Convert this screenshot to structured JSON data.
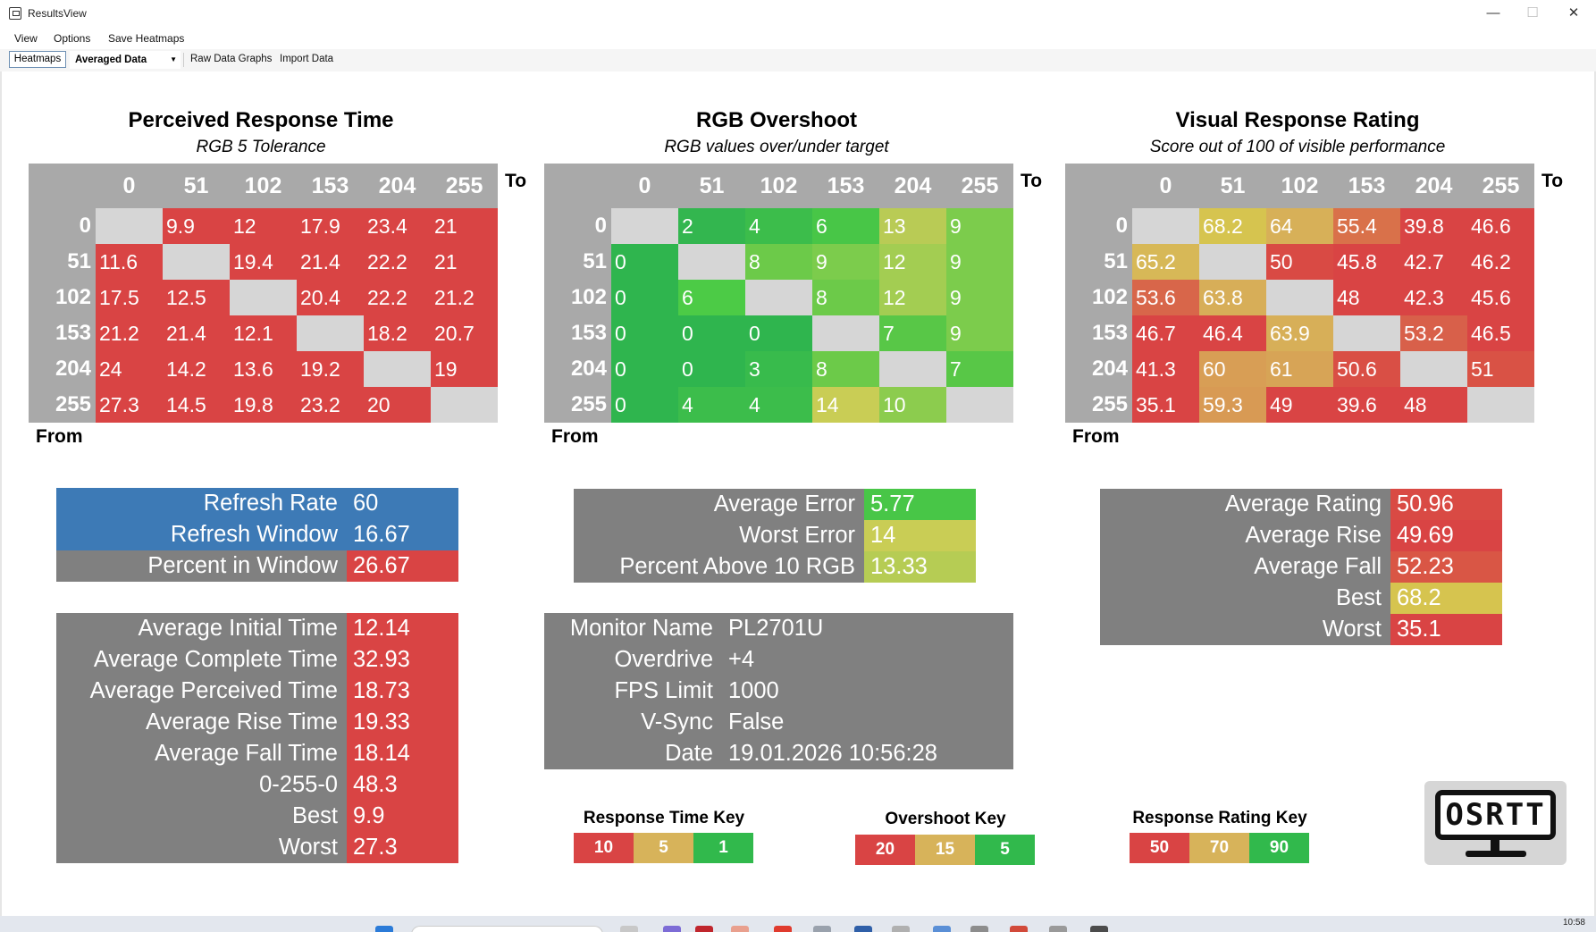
{
  "window": {
    "title": "ResultsView",
    "minimize": "—",
    "maximize": "☐",
    "close": "✕"
  },
  "menu": [
    "View",
    "Options",
    "Save Heatmaps"
  ],
  "toolbar": {
    "heatmaps": "Heatmaps",
    "dataset": "Averaged Data",
    "raw_graphs": "Raw Data Graphs",
    "import": "Import Data"
  },
  "axis": {
    "to": "To",
    "from": "From",
    "levels": [
      "0",
      "51",
      "102",
      "153",
      "204",
      "255"
    ]
  },
  "colors": {
    "red": "#d94444",
    "orange_red": "#dc4f43",
    "amber": "#d7b35a",
    "yellow": "#c9cd55",
    "lightgreen": "#7ccc4c",
    "green": "#31b94c",
    "grey": "#808080",
    "blue": "#3d7ab6",
    "cellgrey": "#d6d6d6"
  },
  "heatmaps": [
    {
      "title": "Perceived Response Time",
      "subtitle": "RGB 5 Tolerance",
      "cells": [
        [
          null,
          "9.9",
          "12",
          "17.9",
          "23.4",
          "21"
        ],
        [
          "11.6",
          null,
          "19.4",
          "21.4",
          "22.2",
          "21"
        ],
        [
          "17.5",
          "12.5",
          null,
          "20.4",
          "22.2",
          "21.2"
        ],
        [
          "21.2",
          "21.4",
          "12.1",
          null,
          "18.2",
          "20.7"
        ],
        [
          "24",
          "14.2",
          "13.6",
          "19.2",
          null,
          "19"
        ],
        [
          "27.3",
          "14.5",
          "19.8",
          "23.2",
          "20",
          null
        ]
      ],
      "cell_colors": [
        [
          null,
          "red",
          "red",
          "red",
          "red",
          "red"
        ],
        [
          "red",
          null,
          "red",
          "red",
          "red",
          "red"
        ],
        [
          "red",
          "red",
          null,
          "red",
          "red",
          "red"
        ],
        [
          "red",
          "red",
          "red",
          null,
          "red",
          "red"
        ],
        [
          "red",
          "red",
          "red",
          "red",
          null,
          "red"
        ],
        [
          "red",
          "red",
          "red",
          "red",
          "red",
          null
        ]
      ]
    },
    {
      "title": "RGB Overshoot",
      "subtitle": "RGB values over/under target",
      "cells": [
        [
          null,
          "2",
          "4",
          "6",
          "13",
          "9"
        ],
        [
          "0",
          null,
          "8",
          "9",
          "12",
          "9"
        ],
        [
          "0",
          "6",
          null,
          "8",
          "12",
          "9"
        ],
        [
          "0",
          "0",
          "0",
          null,
          "7",
          "9"
        ],
        [
          "0",
          "0",
          "3",
          "8",
          null,
          "7"
        ],
        [
          "0",
          "4",
          "4",
          "14",
          "10",
          null
        ]
      ],
      "cell_colors": [
        [
          null,
          "#33b64f",
          "#3cbd4b",
          "#48c647",
          "#b9cb55",
          "#7ccc4c"
        ],
        [
          "#2fb54e",
          null,
          "#6cca49",
          "#7ccc4c",
          "#a3cd52",
          "#7ccc4c"
        ],
        [
          "#2fb54e",
          "#4ccb46",
          null,
          "#6cca49",
          "#a3cd52",
          "#7ccc4c"
        ],
        [
          "#2fb54e",
          "#2fb54e",
          "#2fb54e",
          null,
          "#58c747",
          "#7ccc4c"
        ],
        [
          "#2fb54e",
          "#2fb54e",
          "#38bb4c",
          "#6cca49",
          null,
          "#58c747"
        ],
        [
          "#2fb54e",
          "#3cbd4b",
          "#3cbd4b",
          "#c9cd55",
          "#8ccc4e",
          null
        ]
      ]
    },
    {
      "title": "Visual Response Rating",
      "subtitle": "Score out of 100 of visible performance",
      "cells": [
        [
          null,
          "68.2",
          "64",
          "55.4",
          "39.8",
          "46.6"
        ],
        [
          "65.2",
          null,
          "50",
          "45.8",
          "42.7",
          "46.2"
        ],
        [
          "53.6",
          "63.8",
          null,
          "48",
          "42.3",
          "45.6"
        ],
        [
          "46.7",
          "46.4",
          "63.9",
          null,
          "53.2",
          "46.5"
        ],
        [
          "41.3",
          "60",
          "61",
          "50.6",
          null,
          "51"
        ],
        [
          "35.1",
          "59.3",
          "49",
          "39.6",
          "48",
          null
        ]
      ],
      "cell_colors": [
        [
          null,
          "#d6c44f",
          "#d7b058",
          "#d9714a",
          "#d94444",
          "#d94444"
        ],
        [
          "#d7b857",
          null,
          "#d94a44",
          "#d94444",
          "#d94444",
          "#d94444"
        ],
        [
          "#d8664a",
          "#d7ae58",
          null,
          "#d94444",
          "#d94444",
          "#d94444"
        ],
        [
          "#d94444",
          "#d94444",
          "#d7af58",
          null,
          "#d8604a",
          "#d94444"
        ],
        [
          "#d94444",
          "#d89e55",
          "#d7a456",
          "#d94f45",
          null,
          "#d95245"
        ],
        [
          "#d94444",
          "#d89a54",
          "#d94444",
          "#d94444",
          "#d94444",
          null
        ]
      ]
    }
  ],
  "refresh_table": [
    {
      "label": "Refresh Rate",
      "value": "60",
      "label_color": "#3d7ab6",
      "value_color": "#3d7ab6"
    },
    {
      "label": "Refresh Window",
      "value": "16.67",
      "label_color": "#3d7ab6",
      "value_color": "#3d7ab6"
    },
    {
      "label": "Percent in Window",
      "value": "26.67",
      "label_color": "#808080",
      "value_color": "#d94444"
    }
  ],
  "response_table": [
    {
      "label": "Average Initial Time",
      "value": "12.14"
    },
    {
      "label": "Average Complete Time",
      "value": "32.93"
    },
    {
      "label": "Average Perceived Time",
      "value": "18.73"
    },
    {
      "label": "Average Rise Time",
      "value": "19.33"
    },
    {
      "label": "Average Fall Time",
      "value": "18.14"
    },
    {
      "label": "0-255-0",
      "value": "48.3"
    },
    {
      "label": "Best",
      "value": "9.9"
    },
    {
      "label": "Worst",
      "value": "27.3"
    }
  ],
  "error_table": [
    {
      "label": "Average Error",
      "value": "5.77",
      "value_color": "#48c647"
    },
    {
      "label": "Worst Error",
      "value": "14",
      "value_color": "#c9cd55"
    },
    {
      "label": "Percent Above 10 RGB",
      "value": "13.33",
      "value_color": "#b6cc54"
    }
  ],
  "monitor_table": [
    {
      "label": "Monitor Name",
      "value": "PL2701U"
    },
    {
      "label": "Overdrive",
      "value": "+4"
    },
    {
      "label": "FPS Limit",
      "value": "1000"
    },
    {
      "label": "V-Sync",
      "value": "False"
    },
    {
      "label": "Date",
      "value": "19.01.2026 10:56:28"
    }
  ],
  "rating_table": [
    {
      "label": "Average Rating",
      "value": "50.96",
      "value_color": "#d94a44"
    },
    {
      "label": "Average Rise",
      "value": "49.69",
      "value_color": "#d94444"
    },
    {
      "label": "Average Fall",
      "value": "52.23",
      "value_color": "#d95645"
    },
    {
      "label": "Best",
      "value": "68.2",
      "value_color": "#d6c44f"
    },
    {
      "label": "Worst",
      "value": "35.1",
      "value_color": "#d94444"
    }
  ],
  "keys": [
    {
      "title": "Response Time Key",
      "values": [
        "10",
        "5",
        "1"
      ],
      "colors": [
        "#d94444",
        "#d7b35a",
        "#31b94c"
      ]
    },
    {
      "title": "Overshoot Key",
      "values": [
        "20",
        "15",
        "5"
      ],
      "colors": [
        "#d94444",
        "#d7b35a",
        "#31b94c"
      ]
    },
    {
      "title": "Response Rating Key",
      "values": [
        "50",
        "70",
        "90"
      ],
      "colors": [
        "#d94444",
        "#d7b35a",
        "#31b94c"
      ]
    }
  ],
  "logo": {
    "text": "OSRTT"
  },
  "taskbar": {
    "clock": "10:58"
  }
}
